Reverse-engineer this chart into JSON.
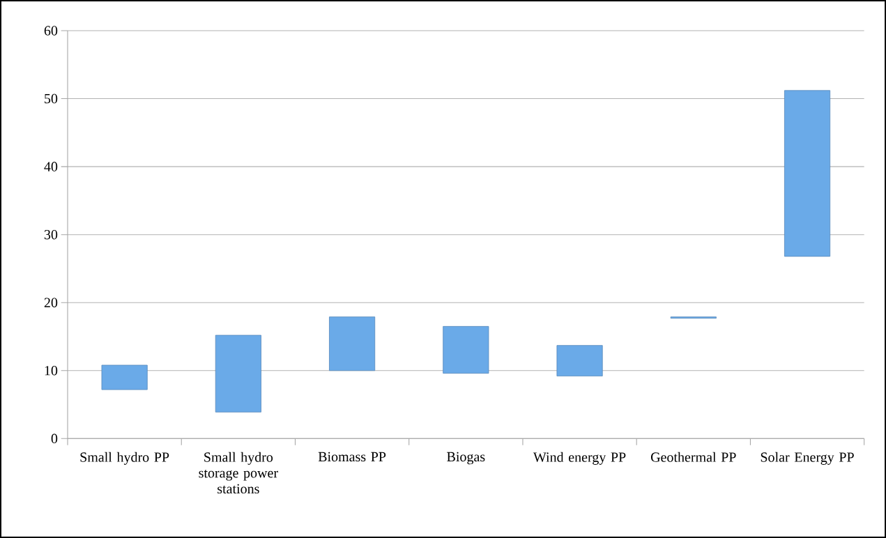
{
  "chart_data": {
    "type": "bar",
    "categories": [
      "Small hydro PP",
      "Small hydro storage power stations",
      "Biomass PP",
      "Biogas",
      "Wind energy PP",
      "Geothermal PP",
      "Solar Energy PP"
    ],
    "base": [
      7.2,
      3.9,
      10,
      9.6,
      9.2,
      17.7,
      26.8
    ],
    "values": [
      3.6,
      11.3,
      7.9,
      6.9,
      4.5,
      0.2,
      24.4
    ],
    "color": "#6aaae8",
    "ylim": [
      0,
      60
    ],
    "yticks": [
      0,
      10,
      20,
      30,
      40,
      50,
      60
    ],
    "grid": "y"
  }
}
